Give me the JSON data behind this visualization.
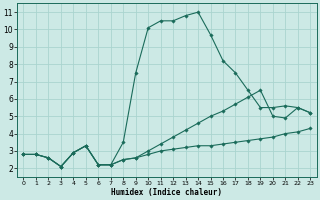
{
  "xlabel": "Humidex (Indice chaleur)",
  "background_color": "#cce9e5",
  "grid_color": "#aad4cf",
  "line_color": "#1a6b5a",
  "xlim": [
    -0.5,
    23.5
  ],
  "ylim": [
    1.5,
    11.5
  ],
  "xticks": [
    0,
    1,
    2,
    3,
    4,
    5,
    6,
    7,
    8,
    9,
    10,
    11,
    12,
    13,
    14,
    15,
    16,
    17,
    18,
    19,
    20,
    21,
    22,
    23
  ],
  "yticks": [
    2,
    3,
    4,
    5,
    6,
    7,
    8,
    9,
    10,
    11
  ],
  "series": [
    {
      "x": [
        0,
        1,
        2,
        3,
        4,
        5,
        6,
        7,
        8,
        9,
        10,
        11,
        12,
        13,
        14,
        15,
        16,
        17,
        18,
        19,
        20,
        21,
        22,
        23
      ],
      "y": [
        2.8,
        2.8,
        2.6,
        2.1,
        2.9,
        3.3,
        2.2,
        2.2,
        2.5,
        2.6,
        2.8,
        3.0,
        3.1,
        3.2,
        3.3,
        3.3,
        3.4,
        3.5,
        3.6,
        3.7,
        3.8,
        4.0,
        4.1,
        4.3
      ]
    },
    {
      "x": [
        0,
        1,
        2,
        3,
        4,
        5,
        6,
        7,
        8,
        9,
        10,
        11,
        12,
        13,
        14,
        15,
        16,
        17,
        18,
        19,
        20,
        21,
        22,
        23
      ],
      "y": [
        2.8,
        2.8,
        2.6,
        2.1,
        2.9,
        3.3,
        2.2,
        2.2,
        2.5,
        2.6,
        3.0,
        3.4,
        3.8,
        4.2,
        4.6,
        5.0,
        5.3,
        5.7,
        6.1,
        6.5,
        5.0,
        4.9,
        5.5,
        5.2
      ]
    },
    {
      "x": [
        0,
        1,
        2,
        3,
        4,
        5,
        6,
        7,
        8,
        9,
        10,
        11,
        12,
        13,
        14,
        15,
        16,
        17,
        18,
        19,
        20,
        21,
        22,
        23
      ],
      "y": [
        2.8,
        2.8,
        2.6,
        2.1,
        2.9,
        3.3,
        2.2,
        2.2,
        3.5,
        7.5,
        10.1,
        10.5,
        10.5,
        10.8,
        11.0,
        9.7,
        8.2,
        7.5,
        6.5,
        5.5,
        5.5,
        5.6,
        5.5,
        5.2
      ]
    }
  ]
}
